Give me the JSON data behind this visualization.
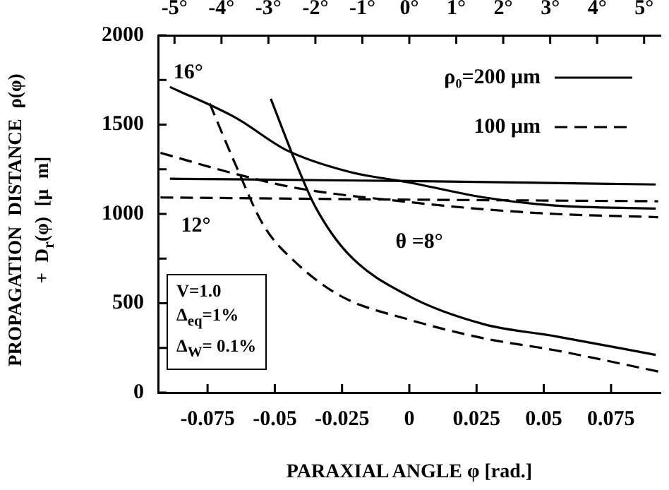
{
  "chart_data": {
    "type": "line",
    "xlabel": "PARAXIAL ANGLE φ [rad.]",
    "ylabel": "PROPAGATION DISTANCE ρ(φ) + D$_{r}$(φ) [μ m]",
    "xlim": [
      -0.0934,
      0.0934
    ],
    "xticks": [
      -0.075,
      -0.05,
      -0.025,
      0,
      0.025,
      0.05,
      0.075
    ],
    "x2lim": [
      -5.35,
      5.35
    ],
    "x2ticks": [
      {
        "value": -5,
        "label": "-5°"
      },
      {
        "value": -4,
        "label": "-4°"
      },
      {
        "value": -3,
        "label": "-3°"
      },
      {
        "value": -2,
        "label": "-2°"
      },
      {
        "value": -1,
        "label": "-1°"
      },
      {
        "value": 0,
        "label": "0°"
      },
      {
        "value": 1,
        "label": "1°"
      },
      {
        "value": 2,
        "label": "2°"
      },
      {
        "value": 3,
        "label": "3°"
      },
      {
        "value": 4,
        "label": "4°"
      },
      {
        "value": 5,
        "label": "5°"
      }
    ],
    "ylim": [
      0,
      2000
    ],
    "yticks": [
      0,
      {
        "value": 250,
        "label": null
      },
      500,
      {
        "value": 750,
        "label": null
      },
      1000,
      {
        "value": 1250,
        "label": null
      },
      1500,
      {
        "value": 1750,
        "label": null
      },
      2000
    ],
    "legend": "top right",
    "marker": "none",
    "series": [
      {
        "name": "ρ₀=200 μm",
        "color": "#000000",
        "line_style": "solid",
        "x": [
          -0.089,
          -0.0646,
          -0.0454,
          -0.0227,
          0,
          0.0279,
          0.0541,
          0.0916
        ],
        "values": [
          1711,
          1539,
          1355,
          1237,
          1176,
          1092,
          1047,
          1030
        ]
      },
      {
        "color": "#000000",
        "line_style": "solid",
        "x": [
          -0.089,
          0,
          0.0916
        ],
        "values": [
          1197,
          1184,
          1165
        ]
      },
      {
        "color": "#000000",
        "line_style": "solid",
        "x": [
          -0.0515,
          -0.0419,
          -0.0349,
          -0.0227,
          0,
          0.0279,
          0.0541,
          0.0916
        ],
        "values": [
          1645,
          1276,
          1039,
          776,
          539,
          382,
          316,
          211
        ]
      },
      {
        "name": "100 μm",
        "color": "#000000",
        "line_style": "dashed",
        "x": [
          -0.0925,
          -0.0646,
          -0.0419,
          0,
          0.0279,
          0.0541,
          0.0925
        ],
        "values": [
          1342,
          1224,
          1145,
          1066,
          1026,
          1000,
          982
        ]
      },
      {
        "color": "#000000",
        "line_style": "dashed",
        "x": [
          -0.0925,
          0,
          0.0925
        ],
        "values": [
          1092,
          1080,
          1071
        ]
      },
      {
        "color": "#000000",
        "line_style": "dashed",
        "x": [
          -0.0742,
          -0.0646,
          -0.0541,
          -0.0419,
          -0.0253,
          0,
          0.0279,
          0.0541,
          0.0925
        ],
        "values": [
          1618,
          1276,
          934,
          724,
          539,
          408,
          303,
          237,
          118
        ]
      }
    ],
    "annotations": [
      "16°",
      "12°",
      "θ =8°",
      "V=1.0",
      "Δ$_{eq}$=1%",
      "Δ$_{W}$= 0.1%"
    ]
  }
}
